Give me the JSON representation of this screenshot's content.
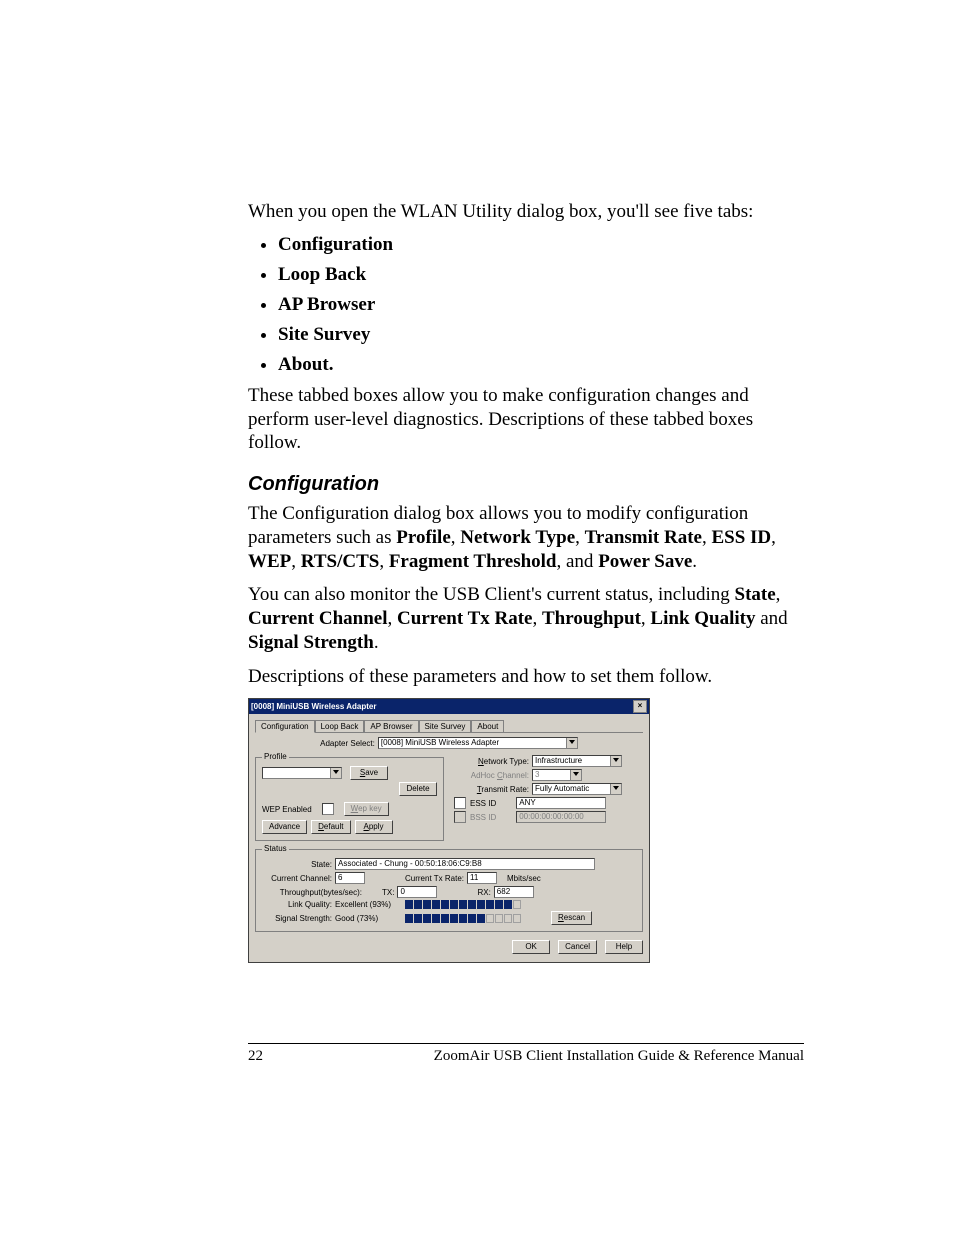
{
  "intro": "When you open the WLAN Utility dialog box, you'll see five tabs:",
  "tab_list": [
    "Configuration",
    "Loop Back",
    "AP Browser",
    "Site Survey",
    "About"
  ],
  "after_list": "These tabbed boxes allow you to make configuration changes and perform user-level diagnostics. Descriptions of these tabbed boxes follow.",
  "section_heading": "Configuration",
  "config_p1_a": "The Configuration dialog box allows you to modify configuration parameters such as ",
  "config_bold1": [
    "Profile",
    "Network Type",
    "Transmit Rate",
    "ESS ID",
    "WEP",
    "RTS/CTS",
    "Fragment Threshold",
    "Power Save"
  ],
  "config_p2_a": "You can also monitor the USB Client's current status, including ",
  "config_bold2": [
    "State",
    "Current Channel",
    "Current Tx Rate",
    "Throughput",
    "Link Quality",
    "Signal Strength"
  ],
  "config_p3": "Descriptions of these parameters and how to set them follow.",
  "dialog": {
    "title": "[0008] MiniUSB Wireless Adapter",
    "tabs": [
      "Configuration",
      "Loop Back",
      "AP Browser",
      "Site Survey",
      "About"
    ],
    "adapter_label": "Adapter Select:",
    "adapter_value": "[0008] MiniUSB Wireless Adapter",
    "profile_group": "Profile",
    "profile_value": "",
    "save": "Save",
    "delete": "Delete",
    "wep_label": "WEP Enabled",
    "wepkey": "Wep key",
    "advance": "Advance",
    "default": "Default",
    "apply": "Apply",
    "net_type_label": "Network Type:",
    "net_type_value": "Infrastructure",
    "adhoc_label": "AdHoc Channel:",
    "adhoc_value": "3",
    "tx_label": "Transmit Rate:",
    "tx_value": "Fully Automatic",
    "essid_label": "ESS ID",
    "essid_value": "ANY",
    "bssid_label": "BSS ID",
    "bssid_value": "00:00:00:00:00:00",
    "status_group": "Status",
    "state_label": "State:",
    "state_value": "Associated - Chung - 00:50:18:06:C9:B8",
    "cur_chan_label": "Current Channel:",
    "cur_chan_value": "6",
    "cur_txrate_label": "Current Tx Rate:",
    "cur_txrate_value": "11",
    "mbits": "Mbits/sec",
    "thru_label": "Throughput(bytes/sec):",
    "tx_lbl": "TX:",
    "tx_val": "0",
    "rx_lbl": "RX:",
    "rx_val": "682",
    "lq_label": "Link Quality:",
    "lq_value": "Excellent (93%)",
    "lq_segments": 13,
    "lq_on": 12,
    "ss_label": "Signal Strength:",
    "ss_value": "Good (73%)",
    "ss_segments": 13,
    "ss_on": 9,
    "rescan": "Rescan",
    "ok": "OK",
    "cancel": "Cancel",
    "help": "Help"
  },
  "footer": {
    "page": "22",
    "title": "ZoomAir USB Client Installation Guide & Reference Manual"
  }
}
